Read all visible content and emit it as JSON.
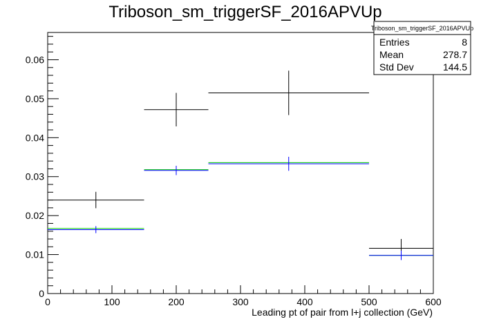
{
  "chart_data": {
    "type": "histogram",
    "title": "Triboson_sm_triggerSF_2016APVUp",
    "xlabel": "Leading pt of pair from l+j collection (GeV)",
    "ylabel": "",
    "xlim": [
      0,
      600
    ],
    "ylim": [
      0,
      0.067
    ],
    "x_ticks": [
      0,
      100,
      200,
      300,
      400,
      500,
      600
    ],
    "y_ticks": [
      0,
      0.01,
      0.02,
      0.03,
      0.04,
      0.05,
      0.06
    ],
    "x_tick_labels": [
      "0",
      "100",
      "200",
      "300",
      "400",
      "500",
      "600"
    ],
    "y_tick_labels": [
      "0",
      "0.01",
      "0.02",
      "0.03",
      "0.04",
      "0.05",
      "0.06"
    ],
    "bin_edges": [
      0,
      150,
      250,
      500,
      600
    ],
    "series": [
      {
        "color": "#000000",
        "values": [
          0.024,
          0.0472,
          0.0515,
          0.0116
        ],
        "errors": [
          0.0021,
          0.0043,
          0.0057,
          0.0024
        ]
      },
      {
        "color": "#00cc00",
        "values": [
          0.0167,
          0.0318,
          0.0336,
          0.0098
        ],
        "errors": [
          0,
          0,
          0,
          0
        ]
      },
      {
        "color": "#0000ff",
        "values": [
          0.0164,
          0.0316,
          0.0333,
          0.0098
        ],
        "errors": [
          0.0009,
          0.0012,
          0.0018,
          0.0012
        ]
      }
    ],
    "grid": false,
    "stats_box": {
      "title": "Triboson_sm_triggerSF_2016APVUp",
      "rows": [
        {
          "label": "Entries",
          "value": "8"
        },
        {
          "label": "Mean",
          "value": "278.7"
        },
        {
          "label": "Std Dev",
          "value": "144.5"
        }
      ]
    }
  }
}
